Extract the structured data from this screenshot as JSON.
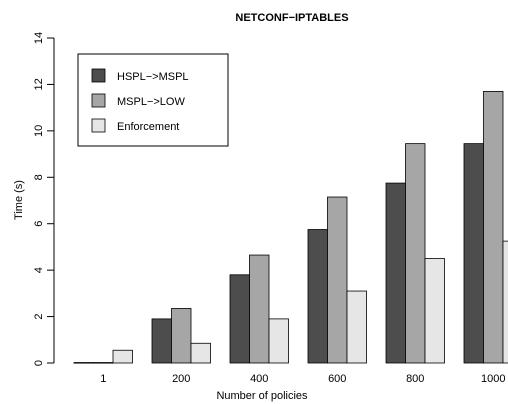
{
  "chart_data": {
    "type": "bar",
    "title": "NETCONF−IPTABLES",
    "xlabel": "Number of policies",
    "ylabel": "Time (s)",
    "categories": [
      "1",
      "200",
      "400",
      "600",
      "800",
      "1000"
    ],
    "ylim": [
      0,
      14
    ],
    "yticks": [
      "0",
      "2",
      "4",
      "6",
      "8",
      "10",
      "12",
      "14"
    ],
    "grid": false,
    "legend_position": "top-left",
    "series": [
      {
        "name": "HSPL−>MSPL",
        "color": "#4d4d4d",
        "values": [
          0.02,
          1.9,
          3.8,
          5.75,
          7.75,
          9.45
        ]
      },
      {
        "name": "MSPL−>LOW",
        "color": "#a6a6a6",
        "values": [
          0.02,
          2.35,
          4.65,
          7.15,
          9.45,
          11.7
        ]
      },
      {
        "name": "Enforcement",
        "color": "#e6e6e6",
        "values": [
          0.55,
          0.85,
          1.9,
          3.1,
          4.5,
          5.25
        ]
      }
    ]
  }
}
